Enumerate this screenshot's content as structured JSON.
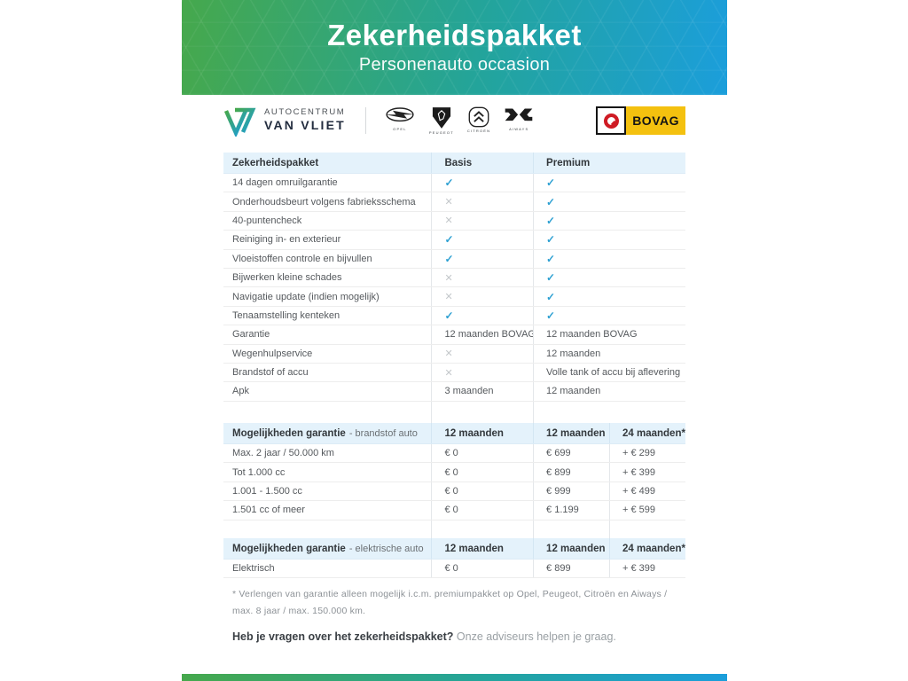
{
  "banner": {
    "title": "Zekerheidspakket",
    "subtitle": "Personenauto occasion"
  },
  "logos": {
    "dealer": {
      "line1": "AUTOCENTRUM",
      "line2": "VAN VLIET"
    },
    "brands": [
      {
        "label": "OPEL"
      },
      {
        "label": "PEUGEOT"
      },
      {
        "label": "CITROËN"
      },
      {
        "label": "AIWAYS"
      }
    ],
    "bovag": "BOVAG"
  },
  "icons": {
    "check_glyph": "✓",
    "cross_glyph": "✕"
  },
  "comparison_table": {
    "headers": [
      "Zekerheidspakket",
      "Basis",
      "Premium"
    ],
    "rows": [
      {
        "label": "14 dagen omruilgarantie",
        "basis": "check",
        "premium": "check"
      },
      {
        "label": "Onderhoudsbeurt volgens fabrieksschema",
        "basis": "cross",
        "premium": "check"
      },
      {
        "label": "40-puntencheck",
        "basis": "cross",
        "premium": "check"
      },
      {
        "label": "Reiniging in- en exterieur",
        "basis": "check",
        "premium": "check"
      },
      {
        "label": "Vloeistoffen controle en bijvullen",
        "basis": "check",
        "premium": "check"
      },
      {
        "label": "Bijwerken kleine schades",
        "basis": "cross",
        "premium": "check"
      },
      {
        "label": "Navigatie update (indien mogelijk)",
        "basis": "cross",
        "premium": "check"
      },
      {
        "label": "Tenaamstelling kenteken",
        "basis": "check",
        "premium": "check"
      },
      {
        "label": "Garantie",
        "basis": "12 maanden BOVAG",
        "premium": "12 maanden BOVAG"
      },
      {
        "label": "Wegenhulpservice",
        "basis": "cross",
        "premium": "12 maanden"
      },
      {
        "label": "Brandstof of accu",
        "basis": "cross",
        "premium": "Volle tank of accu bij aflevering"
      },
      {
        "label": "Apk",
        "basis": "3 maanden",
        "premium": "12 maanden"
      }
    ]
  },
  "fuel_table": {
    "title": "Mogelijkheden garantie",
    "suffix": "- brandstof auto",
    "cols": [
      "12 maanden",
      "12 maanden",
      "24 maanden*"
    ],
    "rows": [
      {
        "label": "Max. 2 jaar / 50.000 km",
        "c1": "€ 0",
        "c2": "€ 699",
        "c3": "+ € 299"
      },
      {
        "label": "Tot 1.000 cc",
        "c1": "€ 0",
        "c2": "€ 899",
        "c3": "+ € 399"
      },
      {
        "label": "1.001 - 1.500 cc",
        "c1": "€ 0",
        "c2": "€ 999",
        "c3": "+ € 499"
      },
      {
        "label": "1.501 cc of meer",
        "c1": "€ 0",
        "c2": "€ 1.199",
        "c3": "+ € 599"
      }
    ]
  },
  "electric_table": {
    "title": "Mogelijkheden garantie",
    "suffix": "- elektrische auto",
    "cols": [
      "12 maanden",
      "12 maanden",
      "24 maanden*"
    ],
    "rows": [
      {
        "label": "Elektrisch",
        "c1": "€ 0",
        "c2": "€ 899",
        "c3": "+ € 399"
      }
    ]
  },
  "footnote": "* Verlengen van garantie alleen mogelijk i.c.m. premiumpakket op Opel, Peugeot, Citroën en Aiways / max. 8 jaar / max. 150.000 km.",
  "question": {
    "bold": "Heb je vragen over het zekerheidspakket?",
    "rest": " Onze adviseurs helpen je graag."
  },
  "colors": {
    "gradient_green": "#46a84c",
    "gradient_blue": "#1b9edb",
    "check_blue": "#2da0d2",
    "cross_gray": "#c4c8cb",
    "table_header_bg": "#e4f2fb",
    "bovag_yellow": "#f4c10f",
    "bovag_red": "#cf1b24"
  }
}
